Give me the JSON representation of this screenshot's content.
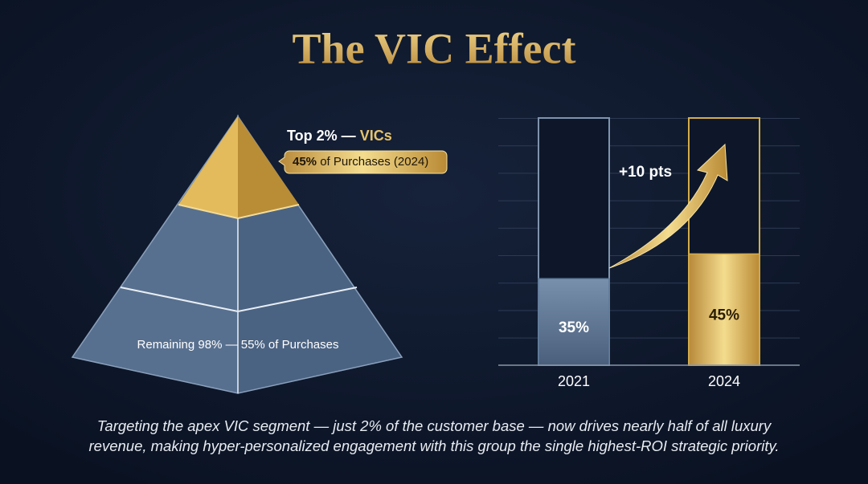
{
  "title": "The VIC Effect",
  "pyramid": {
    "top_label_lead": "Top 2% —",
    "top_label_accent": "VICs",
    "badge_value": "45%",
    "badge_text": "of Purchases (2024)",
    "base_label": "Remaining 98% — 55% of Purchases"
  },
  "chart_data": {
    "type": "bar",
    "categories": [
      "2021",
      "2024"
    ],
    "values": [
      35,
      45
    ],
    "value_labels": [
      "35%",
      "45%"
    ],
    "colors": [
      "#5f7a99",
      "#d4ad4a"
    ],
    "ylim": [
      0,
      100
    ],
    "annotation": "+10 pts"
  },
  "caption": [
    "Targeting the apex VIC segment — just 2% of the customer base — now drives nearly half of all luxury",
    "revenue, making hyper-personalized engagement with this group the single highest-ROI strategic priority."
  ]
}
